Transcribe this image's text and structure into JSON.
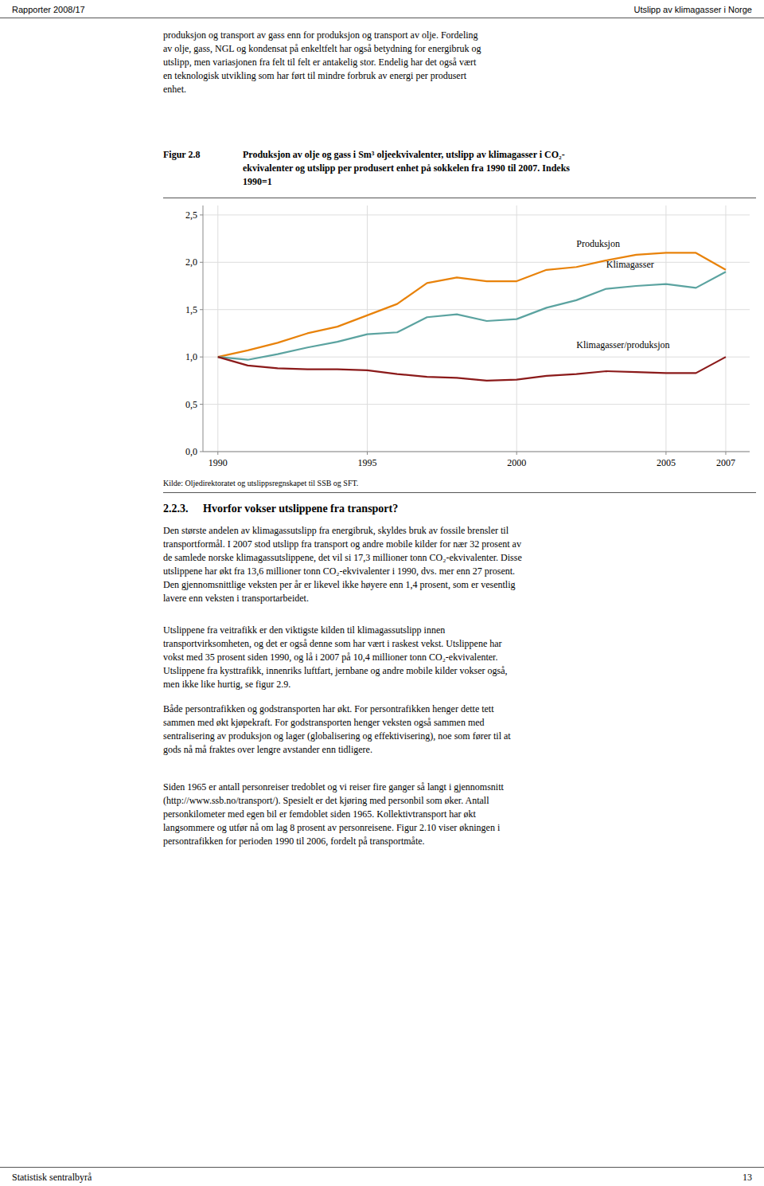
{
  "chart_data": {
    "type": "line",
    "title": "Produksjon av olje og gass i Sm³ oljeekvivalenter, utslipp av klimagasser i CO₂-\nekvivalenter og utslipp per produsert enhet på sokkelen fra 1990 til 2007. Indeks\n1990=1",
    "x": [
      1990,
      1991,
      1992,
      1993,
      1994,
      1995,
      1996,
      1997,
      1998,
      1999,
      2000,
      2001,
      2002,
      2003,
      2004,
      2005,
      2006,
      2007
    ],
    "series": [
      {
        "color": "#E8820A",
        "values": [
          1.0,
          1.07,
          1.15,
          1.25,
          1.32,
          1.44,
          1.56,
          1.78,
          1.84,
          1.8,
          1.8,
          1.92,
          1.95,
          2.02,
          2.08,
          2.1,
          2.1,
          1.92
        ]
      },
      {
        "color": "#5BA3A0",
        "values": [
          1.0,
          0.97,
          1.03,
          1.1,
          1.16,
          1.24,
          1.26,
          1.42,
          1.45,
          1.38,
          1.4,
          1.52,
          1.6,
          1.72,
          1.75,
          1.77,
          1.73,
          1.9
        ]
      },
      {
        "color": "#8B1A1A",
        "values": [
          1.0,
          0.91,
          0.88,
          0.87,
          0.87,
          0.86,
          0.82,
          0.79,
          0.78,
          0.75,
          0.76,
          0.8,
          0.82,
          0.85,
          0.84,
          0.83,
          0.83,
          1.0
        ]
      }
    ],
    "annotations": [
      {
        "text": "Produksjon",
        "x": 2002.0,
        "y": 2.14
      },
      {
        "text": "Klimagasser",
        "x": 2003.0,
        "y": 1.92
      },
      {
        "text": "Klimagasser/produksjon",
        "x": 2002.0,
        "y": 1.07
      }
    ],
    "xlim": [
      1989.5,
      2007.8
    ],
    "xticks": [
      1990,
      1995,
      2000,
      2005,
      2007
    ],
    "ylim": [
      0.0,
      2.6
    ],
    "yticks": [
      {
        "value": 0.0,
        "label": "0,0"
      },
      {
        "value": 0.5,
        "label": "0,5"
      },
      {
        "value": 1.0,
        "label": "1,0"
      },
      {
        "value": 1.5,
        "label": "1,5"
      },
      {
        "value": 2.0,
        "label": "2,0"
      },
      {
        "value": 2.5,
        "label": "2,5"
      }
    ],
    "grid": true
  },
  "page": {
    "header_left": "Rapporter 2008/17",
    "header_right": "Utslipp av klimagasser i Norge",
    "intro": "produksjon og transport av gass enn for produksjon og transport av olje. Fordeling\nav olje, gass, NGL og kondensat på enkeltfelt har også betydning for energibruk og\nutslipp, men variasjonen fra felt til felt er antakelig stor. Endelig har det også vært\nen teknologisk utvikling som har ført til mindre forbruk av energi per produsert\nenhet.",
    "figure_label": "Figur 2.8",
    "source": "Kilde: Oljedirektoratet og utslippsregnskapet til SSB og SFT.",
    "section_number": "2.2.3.",
    "section_heading": "  Hvorfor vokser utslippene fra transport?",
    "body": [
      "Den største andelen av klimagassutslipp fra energibruk, skyldes bruk av fossile brensler til\ntransportformål. I 2007 stod utslipp fra transport og andre mobile kilder for nær 32 prosent av\nde samlede norske klimagassutslippene, det vil si 17,3 millioner tonn CO₂-ekvivalenter. Disse\nutslippene har økt fra 13,6 millioner tonn CO₂-ekvivalenter i 1990, dvs. mer enn 27 prosent.\nDen gjennomsnittlige veksten per år er likevel ikke høyere enn 1,4 prosent, som er vesentlig\nlavere enn veksten i transportarbeidet.",
      "Utslippene fra veitrafikk er den viktigste kilden til klimagassutslipp innen\ntransportvirksomheten, og det er også denne som har vært i raskest vekst. Utslippene har\nvokst med 35 prosent siden 1990, og lå i 2007 på 10,4 millioner tonn CO₂-ekvivalenter.\nUtslippene fra kysttrafikk, innenriks luftfart, jernbane og andre mobile kilder vokser også,\nmen ikke like hurtig, se figur 2.9.",
      "Både persontrafikken og godstransporten har økt. For persontrafikken henger dette tett\nsammen med økt kjøpekraft. For godstransporten henger veksten også sammen med\nsentralisering av produksjon og lager (globalisering og effektivisering), noe som fører til at\ngods nå må fraktes over lengre avstander enn tidligere.",
      "Siden 1965 er antall personreiser tredoblet og vi reiser fire ganger så langt i gjennomsnitt\n(http://www.ssb.no/transport/). Spesielt er det kjøring med personbil som øker. Antall\npersonkilometer med egen bil er femdoblet siden 1965. Kollektivtransport har økt\nlangsommere og utfør nå om lag 8 prosent av personreisene. Figur 2.10 viser økningen i\npersontrafikken for perioden 1990 til 2006, fordelt på transportmåte."
    ],
    "footer_left": "Statistisk sentralbyrå",
    "page_number": "13"
  }
}
